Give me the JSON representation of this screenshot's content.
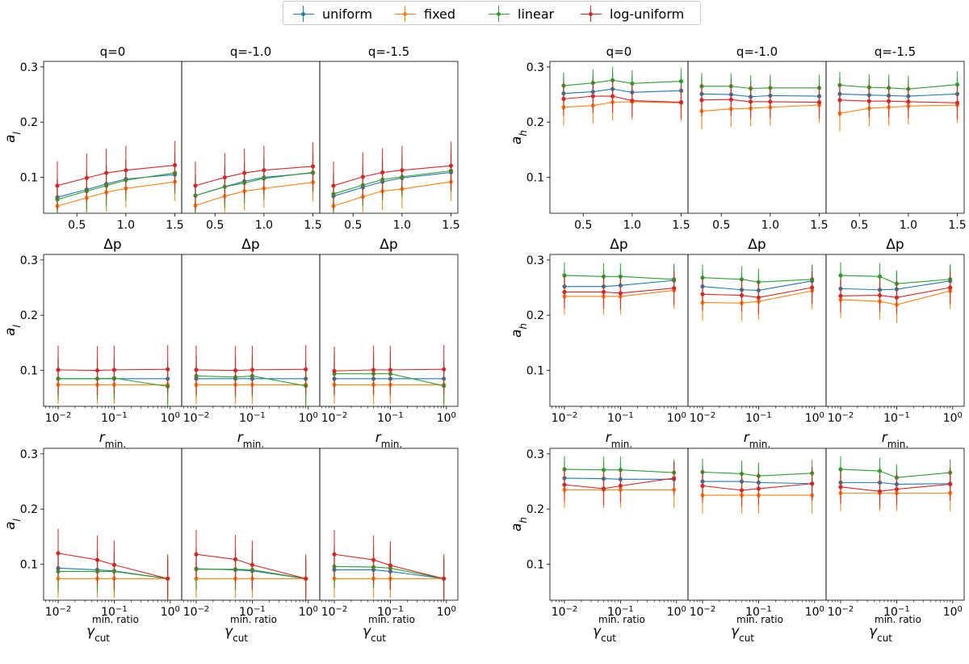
{
  "legend": {
    "items": [
      {
        "label": "uniform",
        "color": "#1f77b4"
      },
      {
        "label": "fixed",
        "color": "#ff7f0e"
      },
      {
        "label": "linear",
        "color": "#2ca02c"
      },
      {
        "label": "log-uniform",
        "color": "#d62728"
      }
    ]
  },
  "chart_data": {
    "type": "line",
    "series_names": [
      "uniform",
      "fixed",
      "linear",
      "log-uniform"
    ],
    "series_colors": [
      "#1f77b4",
      "#ff7f0e",
      "#2ca02c",
      "#d62728"
    ],
    "panel_titles": [
      "q=0",
      "q=-1.0",
      "q=-1.5"
    ],
    "ylim": [
      0.035,
      0.31
    ],
    "yticks": [
      "0.1",
      "0.2",
      "0.3"
    ],
    "ytick_values": [
      0.1,
      0.2,
      0.3
    ],
    "rows": [
      {
        "xlabel": "Δp",
        "xscale": "linear",
        "xlim": [
          0.16,
          1.57
        ],
        "xticks": [
          "0.5",
          "1.0",
          "1.5"
        ],
        "xtick_values": [
          0.5,
          1.0,
          1.5
        ],
        "x": [
          0.3,
          0.6,
          0.8,
          1.0,
          1.5
        ]
      },
      {
        "xlabel": "r",
        "xlabel_sub": "min.",
        "xscale": "log",
        "xlim": [
          0.0055,
          1.6
        ],
        "xticks": [
          "10",
          "10",
          "10"
        ],
        "xtick_exponents": [
          "−2",
          "−1",
          "0"
        ],
        "xtick_values": [
          0.01,
          0.1,
          1
        ],
        "x": [
          0.01,
          0.05,
          0.1,
          0.9
        ]
      },
      {
        "xlabel": "γ",
        "xlabel_sub": "cut",
        "xlabel_sup": "min. ratio",
        "xscale": "log",
        "xlim": [
          0.0055,
          1.6
        ],
        "xticks": [
          "10",
          "10",
          "10"
        ],
        "xtick_exponents": [
          "−2",
          "−1",
          "0"
        ],
        "xtick_values": [
          0.01,
          0.1,
          1
        ],
        "x": [
          0.01,
          0.05,
          0.1,
          0.9
        ]
      }
    ],
    "groups": [
      {
        "ylabel": "a",
        "ylabel_sub": "l",
        "rows": [
          [
            {
              "uniform": [
                0.064,
                0.078,
                0.088,
                0.097,
                0.105
              ],
              "fixed": [
                0.048,
                0.063,
                0.073,
                0.08,
                0.092
              ],
              "linear": [
                0.06,
                0.075,
                0.085,
                0.095,
                0.108
              ],
              "log-uniform": [
                0.085,
                0.099,
                0.108,
                0.113,
                0.122
              ]
            },
            {
              "uniform": [
                0.067,
                0.083,
                0.093,
                0.1,
                0.108
              ],
              "fixed": [
                0.049,
                0.066,
                0.075,
                0.08,
                0.091
              ],
              "linear": [
                0.067,
                0.083,
                0.09,
                0.098,
                0.109
              ],
              "log-uniform": [
                0.085,
                0.1,
                0.108,
                0.113,
                0.12
              ]
            },
            {
              "uniform": [
                0.066,
                0.082,
                0.092,
                0.099,
                0.109
              ],
              "fixed": [
                0.048,
                0.065,
                0.075,
                0.079,
                0.092
              ],
              "linear": [
                0.07,
                0.086,
                0.096,
                0.101,
                0.112
              ],
              "log-uniform": [
                0.085,
                0.101,
                0.109,
                0.113,
                0.121
              ]
            }
          ],
          [
            {
              "uniform": [
                0.085,
                0.085,
                0.085,
                0.085
              ],
              "fixed": [
                0.074,
                0.074,
                0.074,
                0.074
              ],
              "linear": [
                0.085,
                0.085,
                0.086,
                0.071
              ],
              "log-uniform": [
                0.101,
                0.1,
                0.101,
                0.102
              ]
            },
            {
              "uniform": [
                0.085,
                0.085,
                0.085,
                0.085
              ],
              "fixed": [
                0.074,
                0.074,
                0.074,
                0.074
              ],
              "linear": [
                0.09,
                0.088,
                0.09,
                0.072
              ],
              "log-uniform": [
                0.101,
                0.1,
                0.101,
                0.102
              ]
            },
            {
              "uniform": [
                0.085,
                0.085,
                0.085,
                0.085
              ],
              "fixed": [
                0.074,
                0.074,
                0.074,
                0.074
              ],
              "linear": [
                0.094,
                0.094,
                0.094,
                0.072
              ],
              "log-uniform": [
                0.099,
                0.101,
                0.101,
                0.102
              ]
            }
          ],
          [
            {
              "uniform": [
                0.093,
                0.09,
                0.088,
                0.074
              ],
              "fixed": [
                0.074,
                0.074,
                0.074,
                0.074
              ],
              "linear": [
                0.087,
                0.087,
                0.087,
                0.074
              ],
              "log-uniform": [
                0.12,
                0.108,
                0.099,
                0.074
              ]
            },
            {
              "uniform": [
                0.092,
                0.09,
                0.088,
                0.074
              ],
              "fixed": [
                0.074,
                0.074,
                0.074,
                0.074
              ],
              "linear": [
                0.091,
                0.091,
                0.09,
                0.074
              ],
              "log-uniform": [
                0.118,
                0.109,
                0.099,
                0.074
              ]
            },
            {
              "uniform": [
                0.09,
                0.09,
                0.087,
                0.074
              ],
              "fixed": [
                0.074,
                0.074,
                0.074,
                0.074
              ],
              "linear": [
                0.096,
                0.095,
                0.093,
                0.074
              ],
              "log-uniform": [
                0.118,
                0.108,
                0.098,
                0.074
              ]
            }
          ]
        ]
      },
      {
        "ylabel": "a",
        "ylabel_sub": "h",
        "rows": [
          [
            {
              "uniform": [
                0.252,
                0.255,
                0.26,
                0.254,
                0.257
              ],
              "fixed": [
                0.227,
                0.23,
                0.236,
                0.237,
                0.235
              ],
              "linear": [
                0.266,
                0.271,
                0.276,
                0.27,
                0.274
              ],
              "log-uniform": [
                0.242,
                0.247,
                0.247,
                0.239,
                0.236
              ]
            },
            {
              "uniform": [
                0.251,
                0.25,
                0.246,
                0.248,
                0.247
              ],
              "fixed": [
                0.22,
                0.224,
                0.225,
                0.227,
                0.231
              ],
              "linear": [
                0.265,
                0.265,
                0.261,
                0.262,
                0.262
              ],
              "log-uniform": [
                0.24,
                0.241,
                0.237,
                0.237,
                0.236
              ]
            },
            {
              "uniform": [
                0.251,
                0.249,
                0.248,
                0.247,
                0.251
              ],
              "fixed": [
                0.216,
                0.225,
                0.227,
                0.229,
                0.231
              ],
              "linear": [
                0.267,
                0.263,
                0.262,
                0.26,
                0.268
              ],
              "log-uniform": [
                0.24,
                0.238,
                0.238,
                0.237,
                0.235
              ]
            }
          ],
          [
            {
              "uniform": [
                0.252,
                0.252,
                0.254,
                0.263
              ],
              "fixed": [
                0.234,
                0.234,
                0.234,
                0.245
              ],
              "linear": [
                0.272,
                0.27,
                0.27,
                0.265
              ],
              "log-uniform": [
                0.242,
                0.242,
                0.24,
                0.249
              ]
            },
            {
              "uniform": [
                0.252,
                0.246,
                0.245,
                0.262
              ],
              "fixed": [
                0.223,
                0.222,
                0.225,
                0.244
              ],
              "linear": [
                0.268,
                0.265,
                0.26,
                0.265
              ],
              "log-uniform": [
                0.238,
                0.236,
                0.232,
                0.25
              ]
            },
            {
              "uniform": [
                0.248,
                0.246,
                0.247,
                0.262
              ],
              "fixed": [
                0.228,
                0.225,
                0.219,
                0.244
              ],
              "linear": [
                0.272,
                0.27,
                0.257,
                0.265
              ],
              "log-uniform": [
                0.235,
                0.236,
                0.232,
                0.25
              ]
            }
          ],
          [
            {
              "uniform": [
                0.256,
                0.255,
                0.254,
                0.254
              ],
              "fixed": [
                0.235,
                0.235,
                0.235,
                0.235
              ],
              "linear": [
                0.272,
                0.271,
                0.271,
                0.266
              ],
              "log-uniform": [
                0.244,
                0.237,
                0.242,
                0.256
              ]
            },
            {
              "uniform": [
                0.25,
                0.25,
                0.248,
                0.246
              ],
              "fixed": [
                0.225,
                0.225,
                0.225,
                0.225
              ],
              "linear": [
                0.267,
                0.264,
                0.26,
                0.265
              ],
              "log-uniform": [
                0.242,
                0.234,
                0.237,
                0.246
              ]
            },
            {
              "uniform": [
                0.248,
                0.248,
                0.245,
                0.246
              ],
              "fixed": [
                0.229,
                0.229,
                0.229,
                0.229
              ],
              "linear": [
                0.272,
                0.269,
                0.257,
                0.266
              ],
              "log-uniform": [
                0.24,
                0.232,
                0.236,
                0.245
              ]
            }
          ]
        ]
      }
    ],
    "errorbars": {
      "group_0": {
        "uniform": 0.033,
        "fixed": 0.035,
        "linear": 0.038,
        "log-uniform": 0.044
      },
      "group_1": {
        "uniform": 0.03,
        "fixed": 0.033,
        "linear": 0.024,
        "log-uniform": 0.03
      }
    }
  }
}
